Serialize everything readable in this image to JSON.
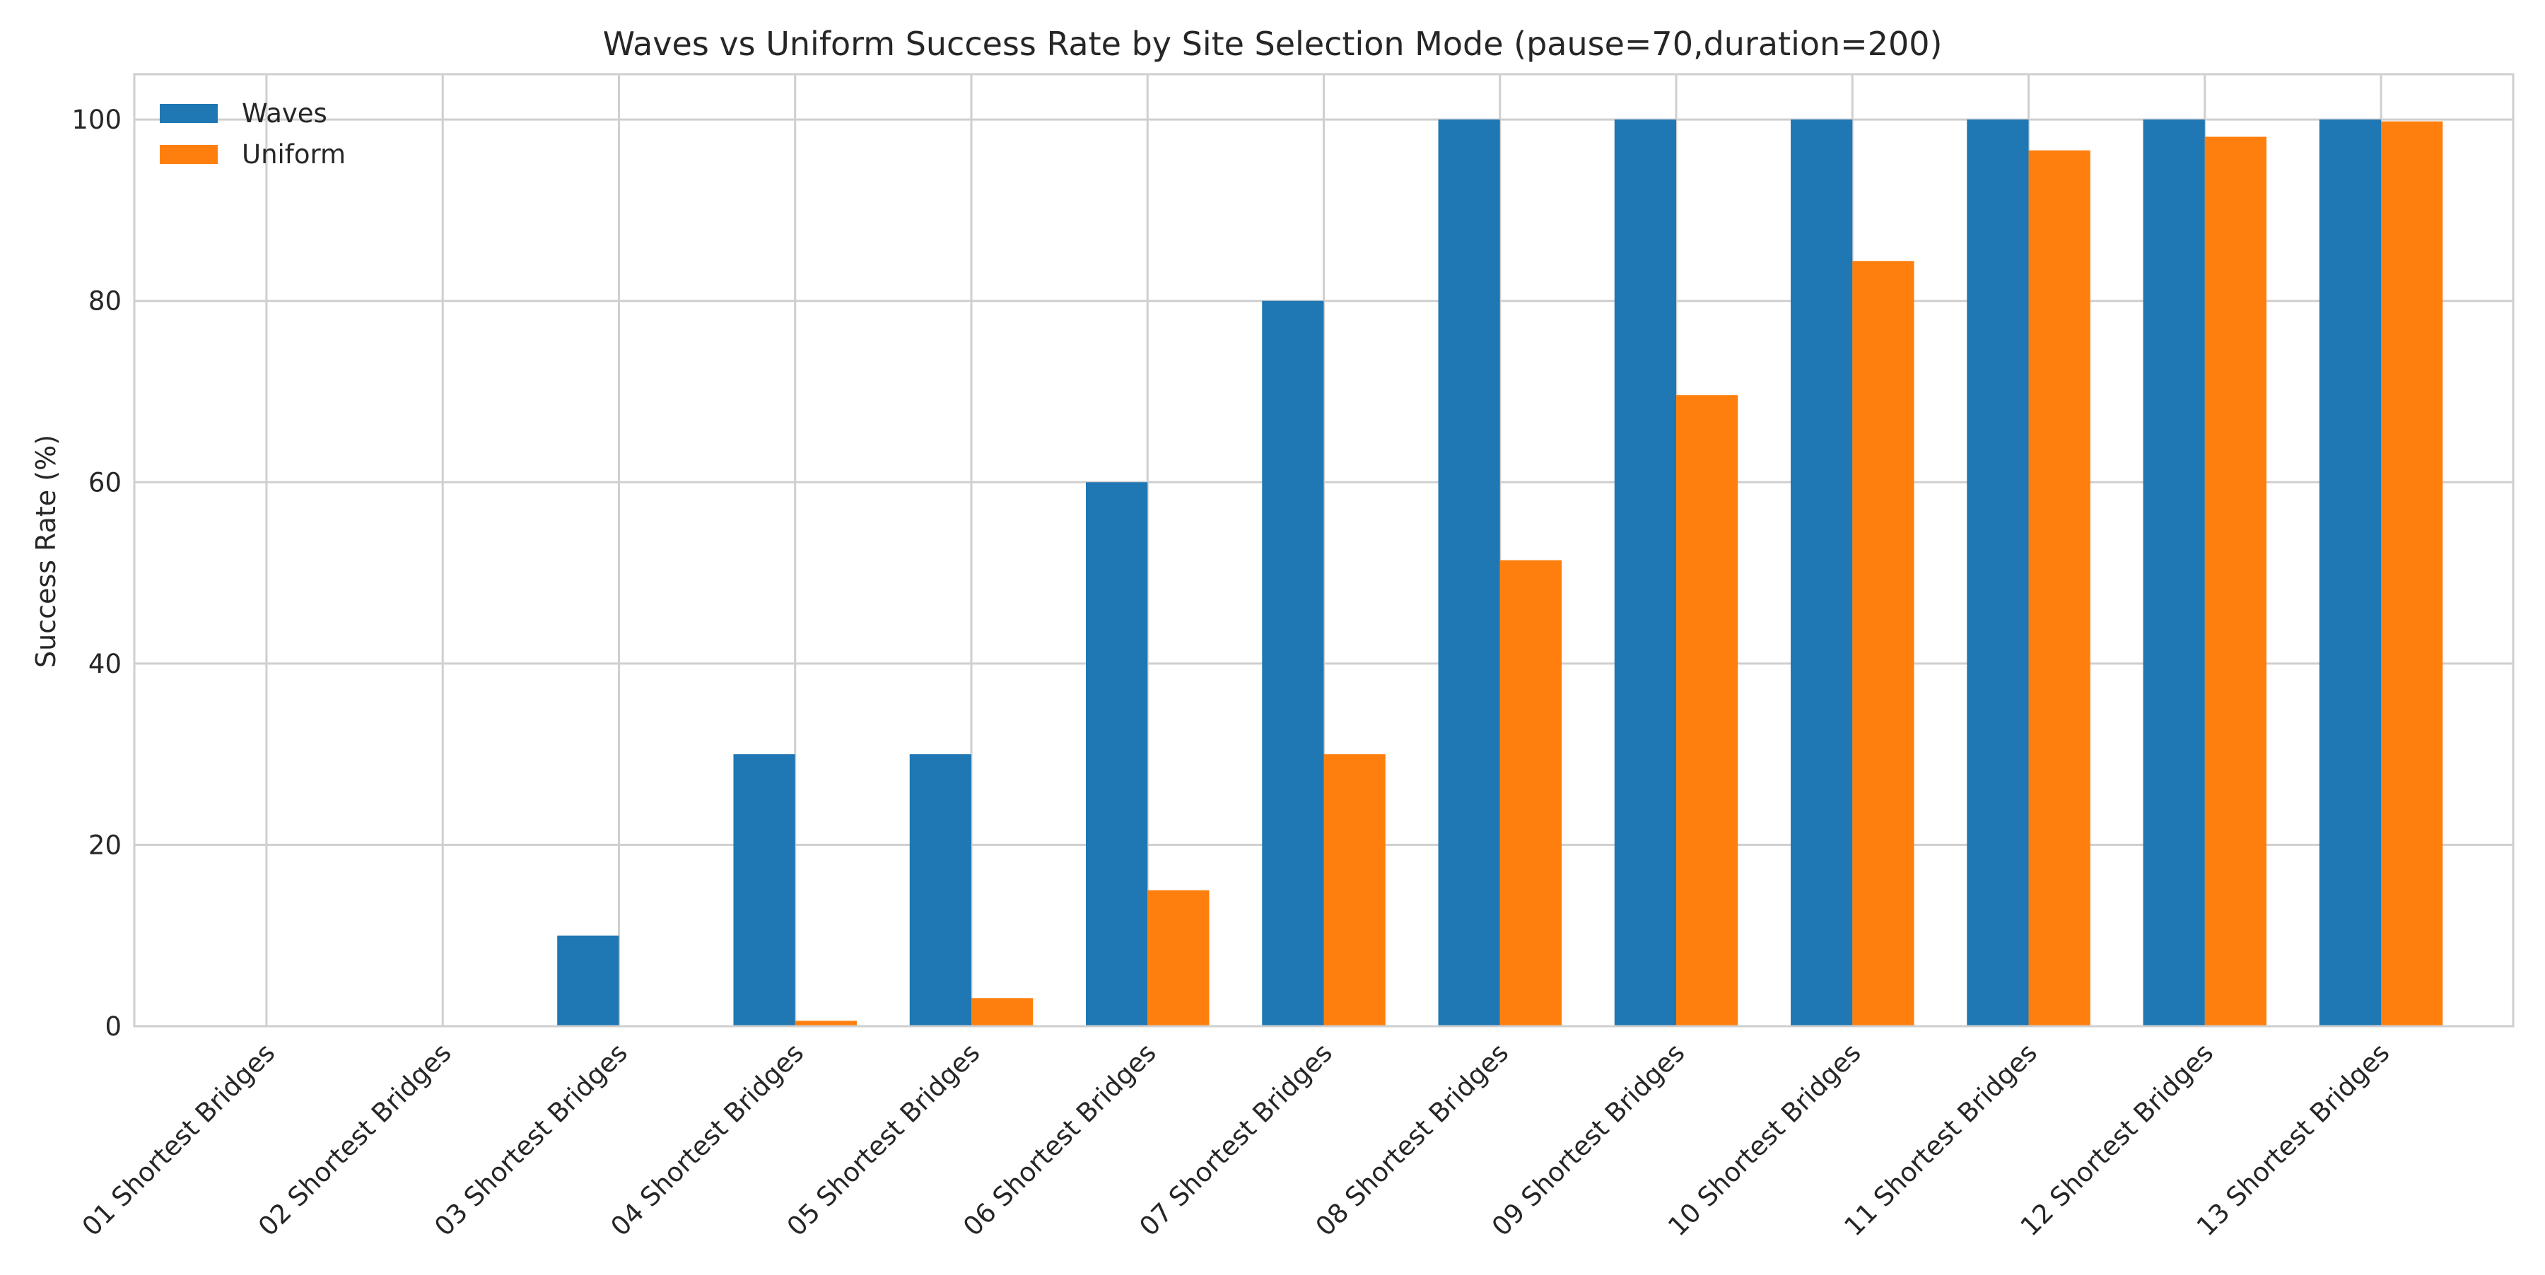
{
  "chart_data": {
    "type": "bar",
    "title": "Waves vs Uniform Success Rate by Site Selection Mode (pause=70,duration=200)",
    "xlabel": "",
    "ylabel": "Success Rate (%)",
    "ylim": [
      0,
      105
    ],
    "yticks": [
      0,
      20,
      40,
      60,
      80,
      100
    ],
    "grid": true,
    "legend_position": "top-left",
    "categories": [
      "01 Shortest Bridges",
      "02 Shortest Bridges",
      "03 Shortest Bridges",
      "04 Shortest Bridges",
      "05 Shortest Bridges",
      "06 Shortest Bridges",
      "07 Shortest Bridges",
      "08 Shortest Bridges",
      "09 Shortest Bridges",
      "10 Shortest Bridges",
      "11 Shortest Bridges",
      "12 Shortest Bridges",
      "13 Shortest Bridges"
    ],
    "series": [
      {
        "name": "Waves",
        "color": "#1f77b4",
        "values": [
          0,
          0,
          10,
          30,
          30,
          60,
          80,
          100,
          100,
          100,
          100,
          100,
          100
        ]
      },
      {
        "name": "Uniform",
        "color": "#ff7f0e",
        "values": [
          0,
          0,
          0,
          0.6,
          3.1,
          15,
          30,
          51.4,
          69.6,
          84.4,
          96.6,
          98.1,
          99.8
        ]
      }
    ]
  }
}
